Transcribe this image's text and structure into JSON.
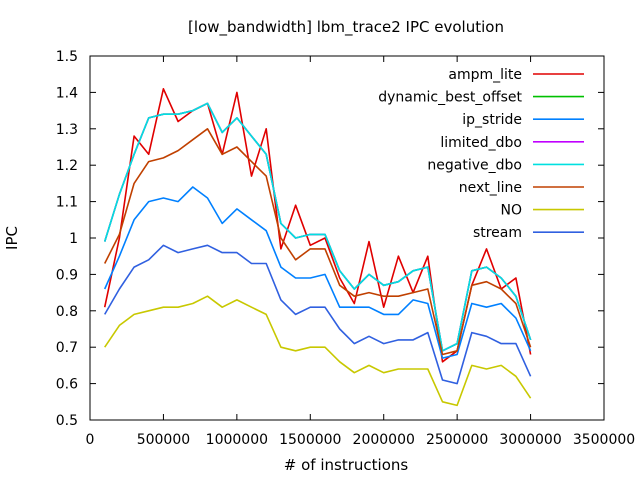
{
  "chart_data": {
    "type": "line",
    "title": "[low_bandwidth] lbm_trace2 IPC evolution",
    "xlabel": "# of instructions",
    "ylabel": "IPC",
    "xlim": [
      0,
      3500000
    ],
    "ylim": [
      0.5,
      1.5
    ],
    "xticks": [
      0,
      500000,
      1000000,
      1500000,
      2000000,
      2500000,
      3000000,
      3500000
    ],
    "xtick_labels": [
      "0",
      "500000",
      "1000000",
      "1500000",
      "2000000",
      "2500000",
      "3000000",
      "3500000"
    ],
    "yticks": [
      0.5,
      0.6,
      0.7,
      0.8,
      0.9,
      1.0,
      1.1,
      1.2,
      1.3,
      1.4,
      1.5
    ],
    "ytick_labels": [
      "0.5",
      "0.6",
      "0.7",
      "0.8",
      "0.9",
      "1",
      "1.1",
      "1.2",
      "1.3",
      "1.4",
      "1.5"
    ],
    "grid": false,
    "legend_position": "top-right",
    "x": [
      100000,
      200000,
      300000,
      400000,
      500000,
      600000,
      700000,
      800000,
      900000,
      1000000,
      1100000,
      1200000,
      1300000,
      1400000,
      1500000,
      1600000,
      1700000,
      1800000,
      1900000,
      2000000,
      2100000,
      2200000,
      2300000,
      2400000,
      2500000,
      2600000,
      2700000,
      2800000,
      2900000,
      3000000
    ],
    "series": [
      {
        "name": "ampm_lite",
        "color": "#e00000",
        "values": [
          0.81,
          1.0,
          1.28,
          1.23,
          1.41,
          1.32,
          1.35,
          1.37,
          1.23,
          1.4,
          1.17,
          1.3,
          0.97,
          1.09,
          0.98,
          1.0,
          0.89,
          0.82,
          0.99,
          0.81,
          0.95,
          0.85,
          0.95,
          0.66,
          0.69,
          0.87,
          0.97,
          0.86,
          0.89,
          0.68
        ]
      },
      {
        "name": "dynamic_best_offset",
        "color": "#00c000",
        "values": [
          0.99,
          1.12,
          1.23,
          1.33,
          1.34,
          1.34,
          1.35,
          1.37,
          1.29,
          1.33,
          1.28,
          1.23,
          1.04,
          1.0,
          1.01,
          1.01,
          0.91,
          0.86,
          0.9,
          0.87,
          0.88,
          0.91,
          0.92,
          0.69,
          0.71,
          0.91,
          0.92,
          0.89,
          0.84,
          0.72
        ]
      },
      {
        "name": "ip_stride",
        "color": "#0080ff",
        "values": [
          0.86,
          0.95,
          1.05,
          1.1,
          1.11,
          1.1,
          1.14,
          1.11,
          1.04,
          1.08,
          1.05,
          1.02,
          0.92,
          0.89,
          0.89,
          0.9,
          0.81,
          0.81,
          0.81,
          0.79,
          0.79,
          0.83,
          0.82,
          0.67,
          0.68,
          0.82,
          0.81,
          0.82,
          0.78,
          0.69
        ]
      },
      {
        "name": "limited_dbo",
        "color": "#c000ff",
        "values": [
          0.99,
          1.12,
          1.23,
          1.33,
          1.34,
          1.34,
          1.35,
          1.37,
          1.29,
          1.33,
          1.28,
          1.23,
          1.04,
          1.0,
          1.01,
          1.01,
          0.91,
          0.86,
          0.9,
          0.87,
          0.88,
          0.91,
          0.92,
          0.69,
          0.71,
          0.91,
          0.92,
          0.89,
          0.84,
          0.72
        ]
      },
      {
        "name": "negative_dbo",
        "color": "#00e0e0",
        "values": [
          0.99,
          1.12,
          1.23,
          1.33,
          1.34,
          1.34,
          1.35,
          1.37,
          1.29,
          1.33,
          1.28,
          1.23,
          1.04,
          1.0,
          1.01,
          1.01,
          0.91,
          0.86,
          0.9,
          0.87,
          0.88,
          0.91,
          0.92,
          0.69,
          0.71,
          0.91,
          0.92,
          0.89,
          0.84,
          0.72
        ]
      },
      {
        "name": "next_line",
        "color": "#c04000",
        "values": [
          0.93,
          1.01,
          1.15,
          1.21,
          1.22,
          1.24,
          1.27,
          1.3,
          1.23,
          1.25,
          1.21,
          1.17,
          1.0,
          0.94,
          0.97,
          0.97,
          0.87,
          0.84,
          0.85,
          0.84,
          0.84,
          0.85,
          0.86,
          0.68,
          0.69,
          0.87,
          0.88,
          0.86,
          0.82,
          0.7
        ]
      },
      {
        "name": "NO",
        "color": "#c8c800",
        "values": [
          0.7,
          0.76,
          0.79,
          0.8,
          0.81,
          0.81,
          0.82,
          0.84,
          0.81,
          0.83,
          0.81,
          0.79,
          0.7,
          0.69,
          0.7,
          0.7,
          0.66,
          0.63,
          0.65,
          0.63,
          0.64,
          0.64,
          0.64,
          0.55,
          0.54,
          0.65,
          0.64,
          0.65,
          0.62,
          0.56
        ]
      },
      {
        "name": "stream",
        "color": "#3060e0",
        "values": [
          0.79,
          0.86,
          0.92,
          0.94,
          0.98,
          0.96,
          0.97,
          0.98,
          0.96,
          0.96,
          0.93,
          0.93,
          0.83,
          0.79,
          0.81,
          0.81,
          0.75,
          0.71,
          0.73,
          0.71,
          0.72,
          0.72,
          0.74,
          0.61,
          0.6,
          0.74,
          0.73,
          0.71,
          0.71,
          0.62
        ]
      }
    ]
  }
}
